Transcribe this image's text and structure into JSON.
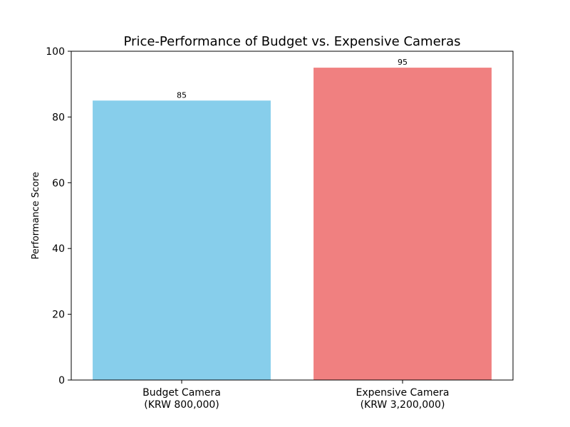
{
  "chart_data": {
    "type": "bar",
    "title": "Price-Performance of Budget vs. Expensive Cameras",
    "xlabel": "",
    "ylabel": "Performance Score",
    "ylim": [
      0,
      100
    ],
    "yticks": [
      0,
      20,
      40,
      60,
      80,
      100
    ],
    "categories": [
      [
        "Budget Camera",
        "(KRW 800,000)"
      ],
      [
        "Expensive Camera",
        "(KRW 3,200,000)"
      ]
    ],
    "values": [
      85,
      95
    ],
    "value_labels": [
      "85",
      "95"
    ],
    "colors": [
      "#87CEEB",
      "#F08080"
    ],
    "grid": false,
    "legend": "none"
  }
}
